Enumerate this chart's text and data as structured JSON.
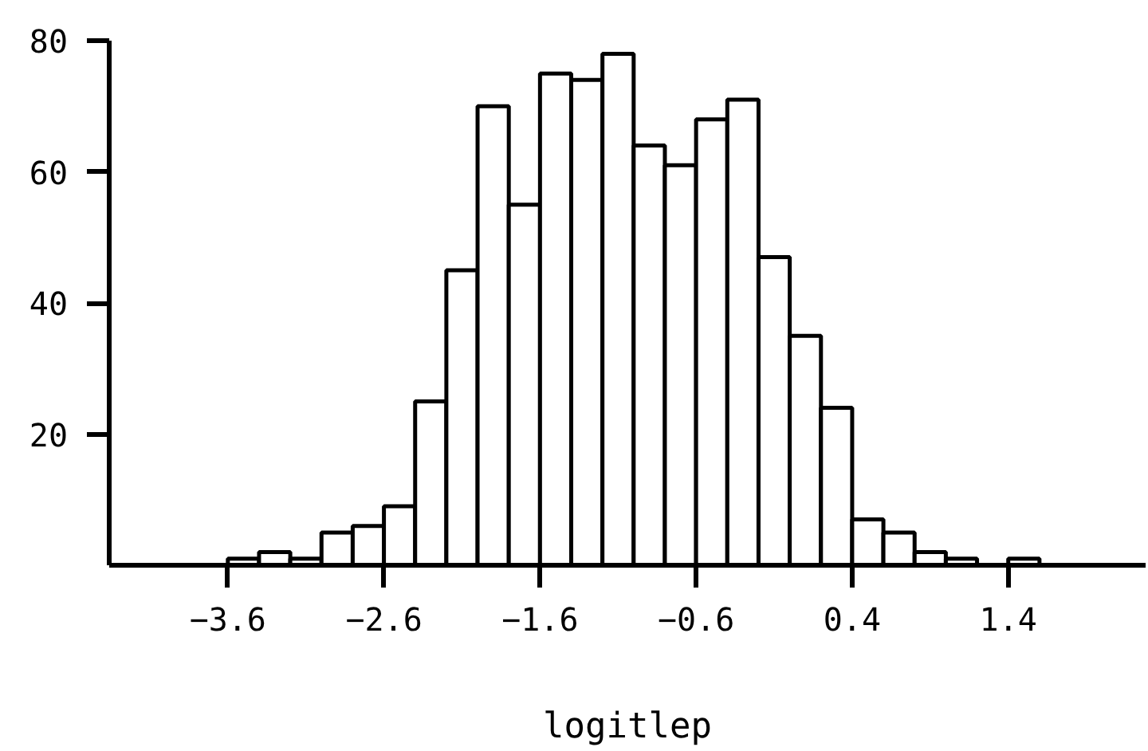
{
  "chart_data": {
    "type": "histogram",
    "xlabel": "logitlep",
    "bins": [
      -3.6,
      -3.4,
      -3.2,
      -3.0,
      -2.8,
      -2.6,
      -2.4,
      -2.2,
      -2.0,
      -1.8,
      -1.6,
      -1.4,
      -1.2,
      -1.0,
      -0.8,
      -0.6,
      -0.4,
      -0.2,
      0.0,
      0.2,
      0.4,
      0.6,
      0.8,
      1.0,
      1.2,
      1.4,
      1.6
    ],
    "values": [
      1,
      2,
      1,
      5,
      6,
      9,
      25,
      45,
      70,
      55,
      75,
      74,
      78,
      64,
      61,
      68,
      71,
      47,
      35,
      24,
      7,
      5,
      2,
      1,
      0,
      1
    ],
    "color": "#ffffff",
    "xlim": [
      -4.36,
      2.28
    ],
    "ylim": [
      0,
      80
    ],
    "xticks": [
      -3.6,
      -2.6,
      -1.6,
      -0.6,
      0.4,
      1.4
    ],
    "yticks": [
      20,
      40,
      60,
      80
    ],
    "grid": false
  }
}
